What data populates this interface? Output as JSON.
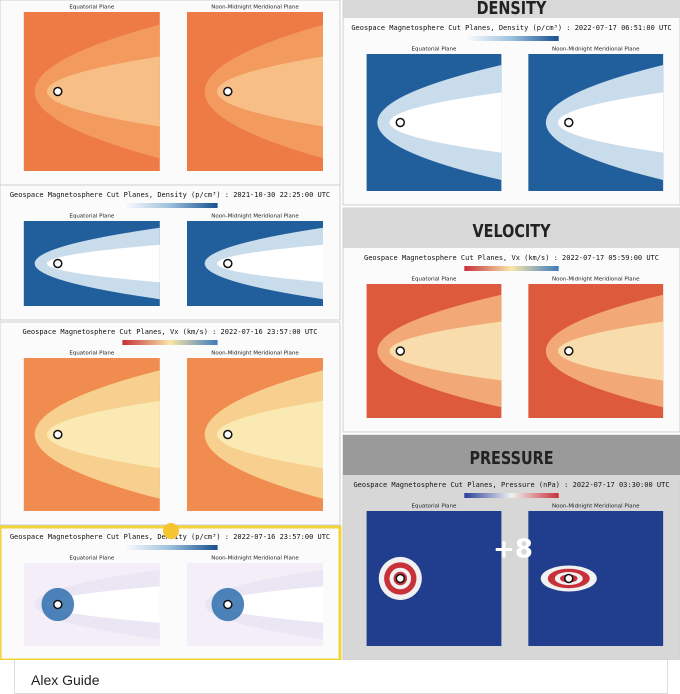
{
  "tiles": [
    {
      "subplots": [
        "Equatorial Plane",
        "Noon-Midnight Meridional Plane"
      ]
    },
    {
      "title": "Geospace Magnetosphere Cut Planes, Density (p/cm³) : 2021-10-30 22:25:00 UTC",
      "subplots": [
        "Equatorial Plane",
        "Noon-Midnight Meridional Plane"
      ]
    },
    {
      "title": "Geospace Magnetosphere Cut Planes, Vx (km/s) : 2022-07-16 23:57:00 UTC",
      "subplots": [
        "Equatorial Plane",
        "Noon-Midnight Meridional Plane"
      ]
    },
    {
      "title": "Geospace Magnetosphere Cut Planes, Density (p/cm³) : 2022-07-16 23:57:00 UTC",
      "subplots": [
        "Equatorial Plane",
        "Noon-Midnight Meridional Plane"
      ]
    },
    {
      "header": "DENSITY",
      "title": "Geospace Magnetosphere Cut Planes, Density (p/cm³) : 2022-07-17 06:51:00 UTC",
      "subplots": [
        "Equatorial Plane",
        "Noon-Midnight Meridional Plane"
      ]
    },
    {
      "header": "VELOCITY",
      "title": "Geospace Magnetosphere Cut Planes, Vx (km/s) : 2022-07-17 05:59:00 UTC",
      "subplots": [
        "Equatorial Plane",
        "Noon-Midnight Meridional Plane"
      ]
    },
    {
      "header": "PRESSURE",
      "title": "Geospace Magnetosphere Cut Planes, Pressure (nPa) : 2022-07-17 03:30:00 UTC",
      "subplots": [
        "Equatorial Plane",
        "Noon-Midnight Meridional Plane"
      ]
    }
  ],
  "more_count": "+8",
  "author": "Alex Guide"
}
